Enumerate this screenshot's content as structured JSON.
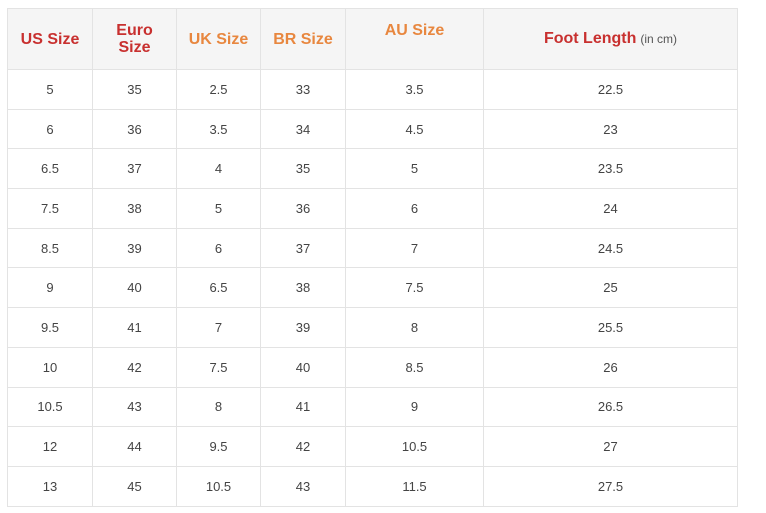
{
  "header": {
    "us": "US Size",
    "euro_line1": "Euro",
    "euro_line2": "Size",
    "uk": "UK Size",
    "br": "BR Size",
    "au": "AU Size",
    "foot": "Foot Length",
    "foot_unit": "(in cm)"
  },
  "colors": {
    "red_header": "#c8302f",
    "orange_header": "#e8873f"
  },
  "rows": [
    [
      "5",
      "35",
      "2.5",
      "33",
      "3.5",
      "22.5"
    ],
    [
      "6",
      "36",
      "3.5",
      "34",
      "4.5",
      "23"
    ],
    [
      "6.5",
      "37",
      "4",
      "35",
      "5",
      "23.5"
    ],
    [
      "7.5",
      "38",
      "5",
      "36",
      "6",
      "24"
    ],
    [
      "8.5",
      "39",
      "6",
      "37",
      "7",
      "24.5"
    ],
    [
      "9",
      "40",
      "6.5",
      "38",
      "7.5",
      "25"
    ],
    [
      "9.5",
      "41",
      "7",
      "39",
      "8",
      "25.5"
    ],
    [
      "10",
      "42",
      "7.5",
      "40",
      "8.5",
      "26"
    ],
    [
      "10.5",
      "43",
      "8",
      "41",
      "9",
      "26.5"
    ],
    [
      "12",
      "44",
      "9.5",
      "42",
      "10.5",
      "27"
    ],
    [
      "13",
      "45",
      "10.5",
      "43",
      "11.5",
      "27.5"
    ]
  ]
}
